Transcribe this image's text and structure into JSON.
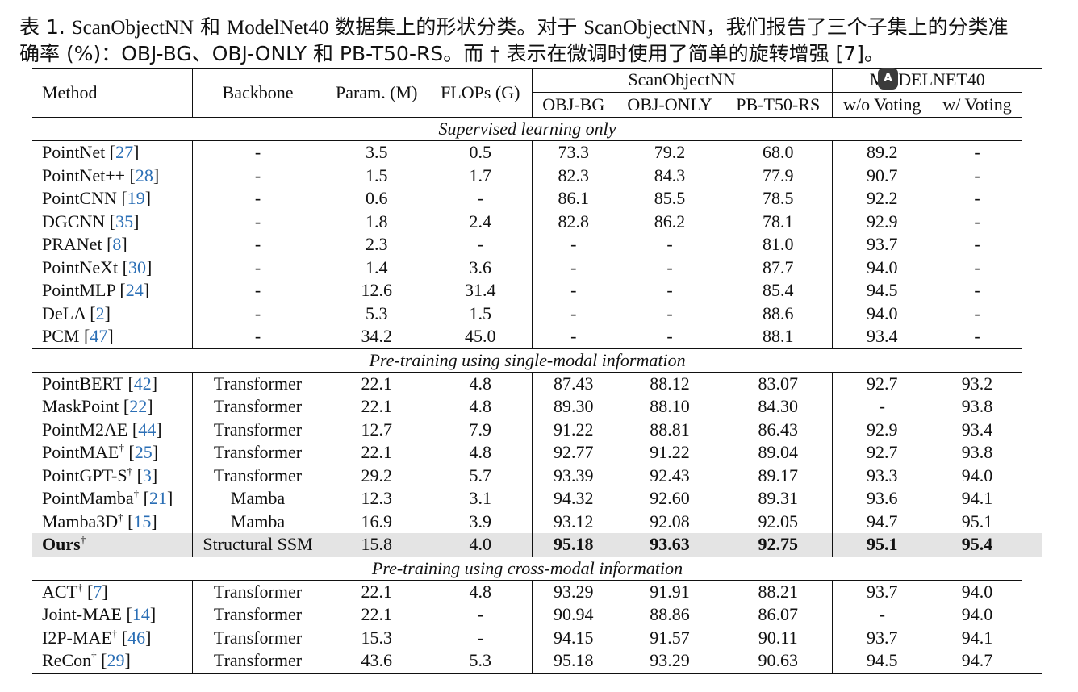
{
  "caption": {
    "line1_a": "表 1. ",
    "line1_b": "ScanObjectNN",
    "line1_c": " 和 ",
    "line1_d": "ModelNet40",
    "line1_e": " 数据集上的形状分类。对于 ",
    "line1_f": "ScanObjectNN",
    "line1_g": "，我们报告了三个子集上的分类准",
    "line2": "确率 (%)：OBJ-BG、OBJ-ONLY 和 PB-T50-RS。而 † 表示在微调时使用了简单的旋转增强 [7]。"
  },
  "badge": "A",
  "header": {
    "method": "Method",
    "backbone": "Backbone",
    "params": "Param. (M)",
    "flops": "FLOPs (G)",
    "scan_group": "ScanObjectNN",
    "model_group": "MODELNET40",
    "obj_bg": "OBJ-BG",
    "obj_only": "OBJ-ONLY",
    "pb": "PB-T50-RS",
    "wo_voting": "w/o Voting",
    "w_voting": "w/ Voting"
  },
  "sections": [
    {
      "title": "Supervised learning only",
      "rows": [
        {
          "name": "PointNet",
          "sup": "",
          "cite": "27",
          "backbone": "-",
          "params": "3.5",
          "flops": "0.5",
          "bg": "73.3",
          "only": "79.2",
          "pb": "68.0",
          "wo": "89.2",
          "w": "-"
        },
        {
          "name": "PointNet++",
          "sup": "",
          "cite": "28",
          "backbone": "-",
          "params": "1.5",
          "flops": "1.7",
          "bg": "82.3",
          "only": "84.3",
          "pb": "77.9",
          "wo": "90.7",
          "w": "-"
        },
        {
          "name": "PointCNN",
          "sup": "",
          "cite": "19",
          "backbone": "-",
          "params": "0.6",
          "flops": "-",
          "bg": "86.1",
          "only": "85.5",
          "pb": "78.5",
          "wo": "92.2",
          "w": "-"
        },
        {
          "name": "DGCNN",
          "sup": "",
          "cite": "35",
          "backbone": "-",
          "params": "1.8",
          "flops": "2.4",
          "bg": "82.8",
          "only": "86.2",
          "pb": "78.1",
          "wo": "92.9",
          "w": "-"
        },
        {
          "name": "PRANet",
          "sup": "",
          "cite": "8",
          "backbone": "-",
          "params": "2.3",
          "flops": "-",
          "bg": "-",
          "only": "-",
          "pb": "81.0",
          "wo": "93.7",
          "w": "-"
        },
        {
          "name": "PointNeXt",
          "sup": "",
          "cite": "30",
          "backbone": "-",
          "params": "1.4",
          "flops": "3.6",
          "bg": "-",
          "only": "-",
          "pb": "87.7",
          "wo": "94.0",
          "w": "-"
        },
        {
          "name": "PointMLP",
          "sup": "",
          "cite": "24",
          "backbone": "-",
          "params": "12.6",
          "flops": "31.4",
          "bg": "-",
          "only": "-",
          "pb": "85.4",
          "wo": "94.5",
          "w": "-"
        },
        {
          "name": "DeLA",
          "sup": "",
          "cite": "2",
          "backbone": "-",
          "params": "5.3",
          "flops": "1.5",
          "bg": "-",
          "only": "-",
          "pb": "88.6",
          "wo": "94.0",
          "w": "-"
        },
        {
          "name": "PCM",
          "sup": "",
          "cite": "47",
          "backbone": "-",
          "params": "34.2",
          "flops": "45.0",
          "bg": "-",
          "only": "-",
          "pb": "88.1",
          "wo": "93.4",
          "w": "-"
        }
      ]
    },
    {
      "title": "Pre-training using single-modal information",
      "rows": [
        {
          "name": "PointBERT",
          "sup": "",
          "cite": "42",
          "backbone": "Transformer",
          "params": "22.1",
          "flops": "4.8",
          "bg": "87.43",
          "only": "88.12",
          "pb": "83.07",
          "wo": "92.7",
          "w": "93.2"
        },
        {
          "name": "MaskPoint",
          "sup": "",
          "cite": "22",
          "backbone": "Transformer",
          "params": "22.1",
          "flops": "4.8",
          "bg": "89.30",
          "only": "88.10",
          "pb": "84.30",
          "wo": "-",
          "w": "93.8"
        },
        {
          "name": "PointM2AE",
          "sup": "",
          "cite": "44",
          "backbone": "Transformer",
          "params": "12.7",
          "flops": "7.9",
          "bg": "91.22",
          "only": "88.81",
          "pb": "86.43",
          "wo": "92.9",
          "w": "93.4"
        },
        {
          "name": "PointMAE",
          "sup": "†",
          "cite": "25",
          "backbone": "Transformer",
          "params": "22.1",
          "flops": "4.8",
          "bg": "92.77",
          "only": "91.22",
          "pb": "89.04",
          "wo": "92.7",
          "w": "93.8"
        },
        {
          "name": "PointGPT-S",
          "sup": "†",
          "cite": "3",
          "backbone": "Transformer",
          "params": "29.2",
          "flops": "5.7",
          "bg": "93.39",
          "only": "92.43",
          "pb": "89.17",
          "wo": "93.3",
          "w": "94.0"
        },
        {
          "name": "PointMamba",
          "sup": "†",
          "cite": "21",
          "backbone": "Mamba",
          "params": "12.3",
          "flops": "3.1",
          "bg": "94.32",
          "only": "92.60",
          "pb": "89.31",
          "wo": "93.6",
          "w": "94.1"
        },
        {
          "name": "Mamba3D",
          "sup": "†",
          "cite": "15",
          "backbone": "Mamba",
          "params": "16.9",
          "flops": "3.9",
          "bg": "93.12",
          "only": "92.08",
          "pb": "92.05",
          "wo": "94.7",
          "w": "95.1"
        }
      ],
      "ours": {
        "name": "Ours",
        "sup": "†",
        "backbone": "Structural SSM",
        "params": "15.8",
        "flops": "4.0",
        "bg": "95.18",
        "only": "93.63",
        "pb": "92.75",
        "wo": "95.1",
        "w": "95.4"
      }
    },
    {
      "title": "Pre-training using cross-modal information",
      "rows": [
        {
          "name": "ACT",
          "sup": "†",
          "cite": "7",
          "backbone": "Transformer",
          "params": "22.1",
          "flops": "4.8",
          "bg": "93.29",
          "only": "91.91",
          "pb": "88.21",
          "wo": "93.7",
          "w": "94.0"
        },
        {
          "name": "Joint-MAE",
          "sup": "",
          "cite": "14",
          "backbone": "Transformer",
          "params": "22.1",
          "flops": "-",
          "bg": "90.94",
          "only": "88.86",
          "pb": "86.07",
          "wo": "-",
          "w": "94.0"
        },
        {
          "name": "I2P-MAE",
          "sup": "†",
          "cite": "46",
          "backbone": "Transformer",
          "params": "15.3",
          "flops": "-",
          "bg": "94.15",
          "only": "91.57",
          "pb": "90.11",
          "wo": "93.7",
          "w": "94.1"
        },
        {
          "name": "ReCon",
          "sup": "†",
          "cite": "29",
          "backbone": "Transformer",
          "params": "43.6",
          "flops": "5.3",
          "bg": "95.18",
          "only": "93.29",
          "pb": "90.63",
          "wo": "94.5",
          "w": "94.7"
        }
      ]
    }
  ]
}
